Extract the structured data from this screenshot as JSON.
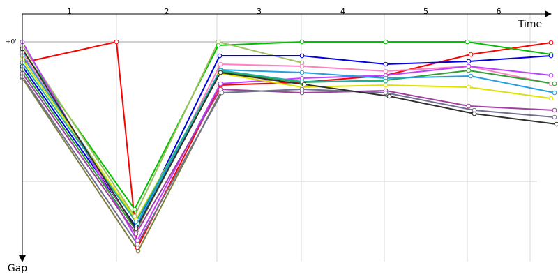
{
  "chart_data": {
    "type": "line",
    "x_label": "Time",
    "y_label": "Gap",
    "categories": [
      "1",
      "2",
      "3",
      "4",
      "5",
      "6"
    ],
    "xlim": [
      0,
      768
    ],
    "ylim": [
      -0.2,
      1.575
    ],
    "xgrid": [
      0,
      135,
      279,
      400,
      519,
      638,
      728
    ],
    "yticks": [
      {
        "value": 0,
        "label": "+0'"
      }
    ],
    "ygrid": [
      0,
      1
    ],
    "series": [
      {
        "color": "#808040",
        "x": [
          0,
          166,
          284
        ],
        "values": [
          0.26,
          1.5,
          0.365
        ]
      },
      {
        "color": "#ff0000",
        "x": [
          0,
          135,
          165,
          284,
          401,
          521,
          643,
          758
        ],
        "values": [
          0.15,
          0,
          1.475,
          0.31,
          0.29,
          0.24,
          0.09,
          0.005
        ]
      },
      {
        "color": "#00c000",
        "x": [
          0,
          161,
          281,
          401,
          521,
          638,
          758
        ],
        "values": [
          0.06,
          1.2,
          0.025,
          0,
          0,
          0,
          0.09
        ]
      },
      {
        "color": "#a0c060",
        "x": [
          0,
          161,
          281,
          401
        ],
        "values": [
          0.025,
          1.25,
          0,
          0.15
        ]
      },
      {
        "color": "#0000e0",
        "x": [
          0,
          163,
          283,
          401,
          521,
          640,
          758
        ],
        "values": [
          0.175,
          1.325,
          0.1,
          0.1,
          0.16,
          0.14,
          0.1
        ]
      },
      {
        "color": "#ff80c0",
        "x": [
          0,
          164,
          284,
          401,
          521,
          640,
          758
        ],
        "values": [
          0.075,
          1.35,
          0.16,
          0.175,
          0.21,
          0.175,
          0.3
        ]
      },
      {
        "color": "#c040ff",
        "x": [
          0,
          165,
          284,
          401,
          521,
          640,
          758
        ],
        "values": [
          0,
          1.425,
          0.3,
          0.26,
          0.24,
          0.175,
          0.24
        ]
      },
      {
        "color": "#30a030",
        "x": [
          0,
          163,
          284,
          401,
          521,
          640,
          763
        ],
        "values": [
          0.2,
          1.35,
          0.215,
          0.29,
          0.275,
          0.205,
          0.3
        ]
      },
      {
        "color": "#20a0e0",
        "x": [
          0,
          165,
          284,
          401,
          521,
          643,
          763
        ],
        "values": [
          0.1,
          1.3,
          0.2,
          0.22,
          0.26,
          0.245,
          0.365
        ]
      },
      {
        "color": "#e0e000",
        "x": [
          0,
          163,
          283,
          401,
          521,
          640,
          758
        ],
        "values": [
          0.125,
          1.275,
          0.225,
          0.325,
          0.31,
          0.325,
          0.405
        ]
      },
      {
        "color": "#20b0a0",
        "x": [
          0,
          163,
          284,
          401,
          521
        ],
        "values": [
          0.15,
          1.29,
          0.205,
          0.285,
          0.28
        ]
      },
      {
        "color": "#a040a0",
        "x": [
          0,
          163,
          284,
          401,
          521,
          640,
          763
        ],
        "values": [
          0.225,
          1.375,
          0.34,
          0.365,
          0.35,
          0.46,
          0.49
        ]
      },
      {
        "color": "#707090",
        "x": [
          0,
          165,
          286,
          401,
          521,
          648,
          763
        ],
        "values": [
          0.25,
          1.45,
          0.365,
          0.34,
          0.365,
          0.49,
          0.54
        ]
      },
      {
        "color": "#303030",
        "x": [
          0,
          163,
          284,
          404,
          526,
          648,
          766
        ],
        "values": [
          0.05,
          1.34,
          0.22,
          0.305,
          0.39,
          0.515,
          0.59
        ]
      }
    ]
  }
}
